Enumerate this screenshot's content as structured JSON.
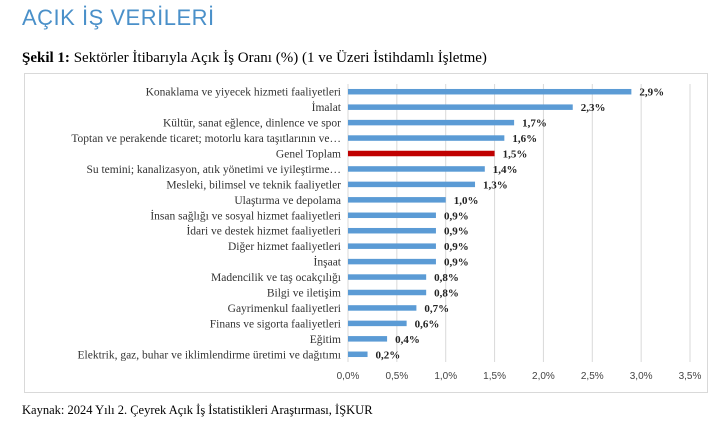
{
  "page": {
    "title": "AÇIK İŞ VERİLERİ",
    "caption_prefix": "Şekil 1:",
    "caption_text": "Sektörler İtibarıyla Açık İş Oranı (%) (1 ve Üzeri İstihdamlı İşletme)",
    "source": "Kaynak: 2024 Yılı 2. Çeyrek Açık İş İstatistikleri Araştırması, İŞKUR"
  },
  "colors": {
    "title": "#4a90c9",
    "bar": "#5b9bd5",
    "highlight_bar": "#c00000",
    "grid": "#d9d9d9"
  },
  "chart_data": {
    "type": "bar",
    "orientation": "horizontal",
    "title": "",
    "xlabel": "",
    "ylabel": "",
    "xlim": [
      0,
      3.5
    ],
    "ticks": [
      "0,0%",
      "0,5%",
      "1,0%",
      "1,5%",
      "2,0%",
      "2,5%",
      "3,0%",
      "3,5%"
    ],
    "tick_values": [
      0,
      0.5,
      1.0,
      1.5,
      2.0,
      2.5,
      3.0,
      3.5
    ],
    "grid": true,
    "categories": [
      "Konaklama ve yiyecek hizmeti faaliyetleri",
      "İmalat",
      "Kültür, sanat eğlence, dinlence ve spor",
      "Toptan ve perakende ticaret; motorlu kara taşıtlarının ve…",
      "Genel Toplam",
      "Su temini; kanalizasyon, atık yönetimi ve iyileştirme…",
      "Mesleki, bilimsel ve teknik faaliyetler",
      "Ulaştırma ve depolama",
      "İnsan sağlığı ve sosyal hizmet faaliyetleri",
      "İdari ve destek hizmet faaliyetleri",
      "Diğer hizmet faaliyetleri",
      "İnşaat",
      "Madencilik ve taş ocakçılığı",
      "Bilgi ve iletişim",
      "Gayrimenkul faaliyetleri",
      "Finans ve sigorta faaliyetleri",
      "Eğitim",
      "Elektrik, gaz, buhar ve iklimlendirme üretimi ve dağıtımı"
    ],
    "values": [
      2.9,
      2.3,
      1.7,
      1.6,
      1.5,
      1.4,
      1.3,
      1.0,
      0.9,
      0.9,
      0.9,
      0.9,
      0.8,
      0.8,
      0.7,
      0.6,
      0.4,
      0.2
    ],
    "value_labels": [
      "2,9%",
      "2,3%",
      "1,7%",
      "1,6%",
      "1,5%",
      "1,4%",
      "1,3%",
      "1,0%",
      "0,9%",
      "0,9%",
      "0,9%",
      "0,9%",
      "0,8%",
      "0,8%",
      "0,7%",
      "0,6%",
      "0,4%",
      "0,2%"
    ],
    "highlight_category": "Genel Toplam"
  }
}
